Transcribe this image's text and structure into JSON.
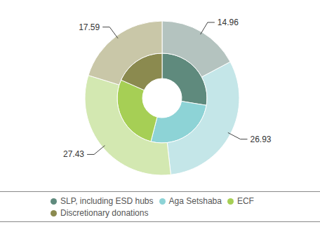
{
  "chart_data": {
    "type": "pie",
    "categories": [
      "SLP, including ESD hubs",
      "Aga Setshaba",
      "ECF",
      "Discretionary donations"
    ],
    "legend": "bottom",
    "series": [
      {
        "values": [
          24,
          23,
          24,
          16
        ],
        "colors": [
          "#5f8a7d",
          "#8dd3d6",
          "#a6cf55",
          "#8b8a4f"
        ]
      },
      {
        "values": [
          14.96,
          26.93,
          27.43,
          17.59
        ],
        "colors": [
          "#b4c3bf",
          "#c4e6e8",
          "#d3e8b1",
          "#c9c7a8"
        ],
        "data_labels": true
      }
    ]
  }
}
